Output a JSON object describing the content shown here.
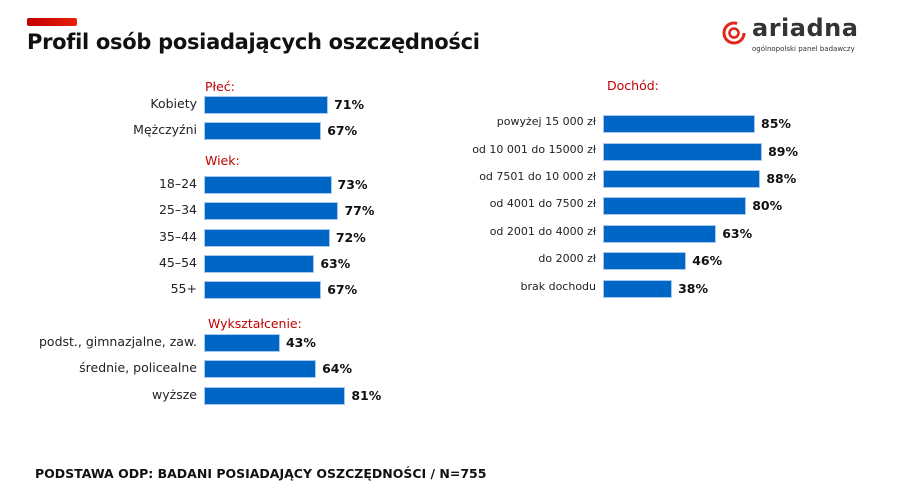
{
  "header": {
    "title": "Profil osób posiadających oszczędności"
  },
  "logo": {
    "name": "ariadna",
    "tagline": "ogólnopolski panel badawczy",
    "color": "#e3241b"
  },
  "footer": {
    "text": "PODSTAWA ODP: BADANI POSIADAJĄCY OSZCZĘDNOŚCI / N=755"
  },
  "chart_data": [
    {
      "type": "bar",
      "orientation": "horizontal",
      "title": "Płeć:",
      "categories": [
        "Kobiety",
        "Mężczyźni"
      ],
      "values": [
        71,
        67
      ],
      "unit": "%"
    },
    {
      "type": "bar",
      "orientation": "horizontal",
      "title": "Wiek:",
      "categories": [
        "18–24",
        "25–34",
        "35–44",
        "45–54",
        "55+"
      ],
      "values": [
        73,
        77,
        72,
        63,
        67
      ],
      "unit": "%"
    },
    {
      "type": "bar",
      "orientation": "horizontal",
      "title": "Wykształcenie:",
      "categories": [
        "podst., gimnazjalne, zaw.",
        "średnie, policealne",
        "wyższe"
      ],
      "values": [
        43,
        64,
        81
      ],
      "unit": "%"
    },
    {
      "type": "bar",
      "orientation": "horizontal",
      "title": "Dochód:",
      "categories": [
        "powyżej 15 000 zł",
        "od 10 001 do 15000 zł",
        "od 7501 do 10 000 zł",
        "od 4001 do 7500 zł",
        "od 2001 do 4000 zł",
        "do 2000 zł",
        "brak dochodu"
      ],
      "values": [
        85,
        89,
        88,
        80,
        63,
        46,
        38
      ],
      "unit": "%"
    }
  ],
  "colors": {
    "bar": "#0066c6",
    "section_label": "#c00000"
  }
}
